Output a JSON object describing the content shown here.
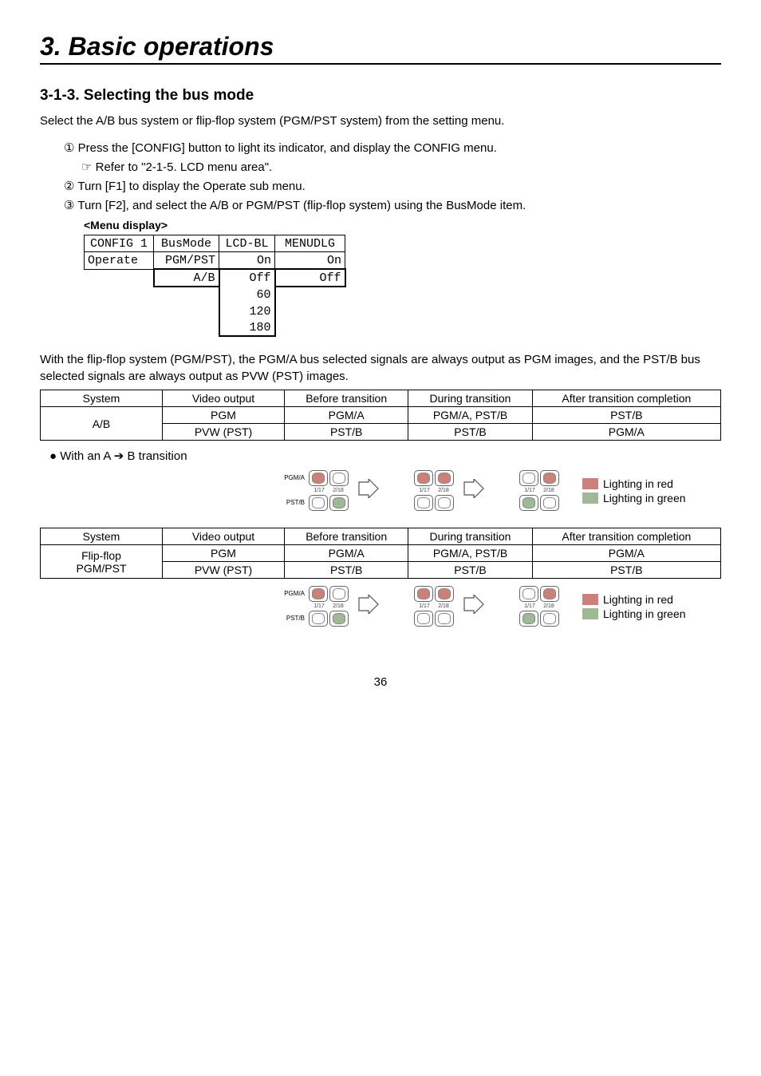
{
  "chapter_title": "3. Basic operations",
  "section_title": "3-1-3. Selecting the bus mode",
  "intro": "Select the A/B bus system or flip-flop system (PGM/PST system) from the setting menu.",
  "steps": {
    "s1": "① Press the [CONFIG] button to light its indicator, and display the CONFIG menu.",
    "s1_sub": "☞ Refer to \"2-1-5. LCD menu area\".",
    "s2": "② Turn [F1] to display the Operate sub menu.",
    "s3": "③ Turn [F2], and select the A/B or PGM/PST (flip-flop system) using the BusMode item."
  },
  "menu_display_label": "<Menu display>",
  "lcd": {
    "header": [
      "CONFIG 1",
      "BusMode",
      "LCD-BL",
      "MENUDLG"
    ],
    "row1": [
      "Operate",
      "PGM/PST",
      "On",
      "On"
    ],
    "opt_c1": [
      "A/B"
    ],
    "opt_c2": [
      "Off",
      "60",
      "120",
      "180"
    ],
    "opt_c3": [
      "Off"
    ]
  },
  "explain": "With the flip-flop system (PGM/PST), the PGM/A bus selected signals are always output as PGM images, and the PST/B bus selected signals are always output as PVW (PST) images.",
  "table_headers": [
    "System",
    "Video output",
    "Before transition",
    "During transition",
    "After transition completion"
  ],
  "table1": {
    "system": "A/B",
    "rows": [
      [
        "PGM",
        "PGM/A",
        "PGM/A, PST/B",
        "PST/B"
      ],
      [
        "PVW (PST)",
        "PST/B",
        "PST/B",
        "PGM/A"
      ]
    ]
  },
  "bullet_note": "● With an A ➔ B transition",
  "table2": {
    "system_line1": "Flip-flop",
    "system_line2": "PGM/PST",
    "rows": [
      [
        "PGM",
        "PGM/A",
        "PGM/A, PST/B",
        "PGM/A"
      ],
      [
        "PVW (PST)",
        "PST/B",
        "PST/B",
        "PST/B"
      ]
    ]
  },
  "diagram": {
    "row_labels": [
      "PGM/A",
      "PST/B"
    ],
    "num_labels": [
      "1/17",
      "2/18"
    ],
    "legend": {
      "red_label": "Lighting in red",
      "green_label": "Lighting in green",
      "red_color": "#cc807a",
      "green_color": "#9fb896",
      "off_color": "#ffffff"
    },
    "ab_states": [
      {
        "top": [
          "red",
          "off"
        ],
        "bot": [
          "off",
          "green"
        ]
      },
      {
        "top": [
          "red",
          "red"
        ],
        "bot": [
          "off",
          "off"
        ]
      },
      {
        "top": [
          "off",
          "red"
        ],
        "bot": [
          "green",
          "off"
        ]
      }
    ],
    "ff_states": [
      {
        "top": [
          "red",
          "off"
        ],
        "bot": [
          "off",
          "green"
        ]
      },
      {
        "top": [
          "red",
          "red"
        ],
        "bot": [
          "off",
          "off"
        ]
      },
      {
        "top": [
          "off",
          "red"
        ],
        "bot": [
          "green",
          "off"
        ]
      }
    ]
  },
  "page_number": "36"
}
